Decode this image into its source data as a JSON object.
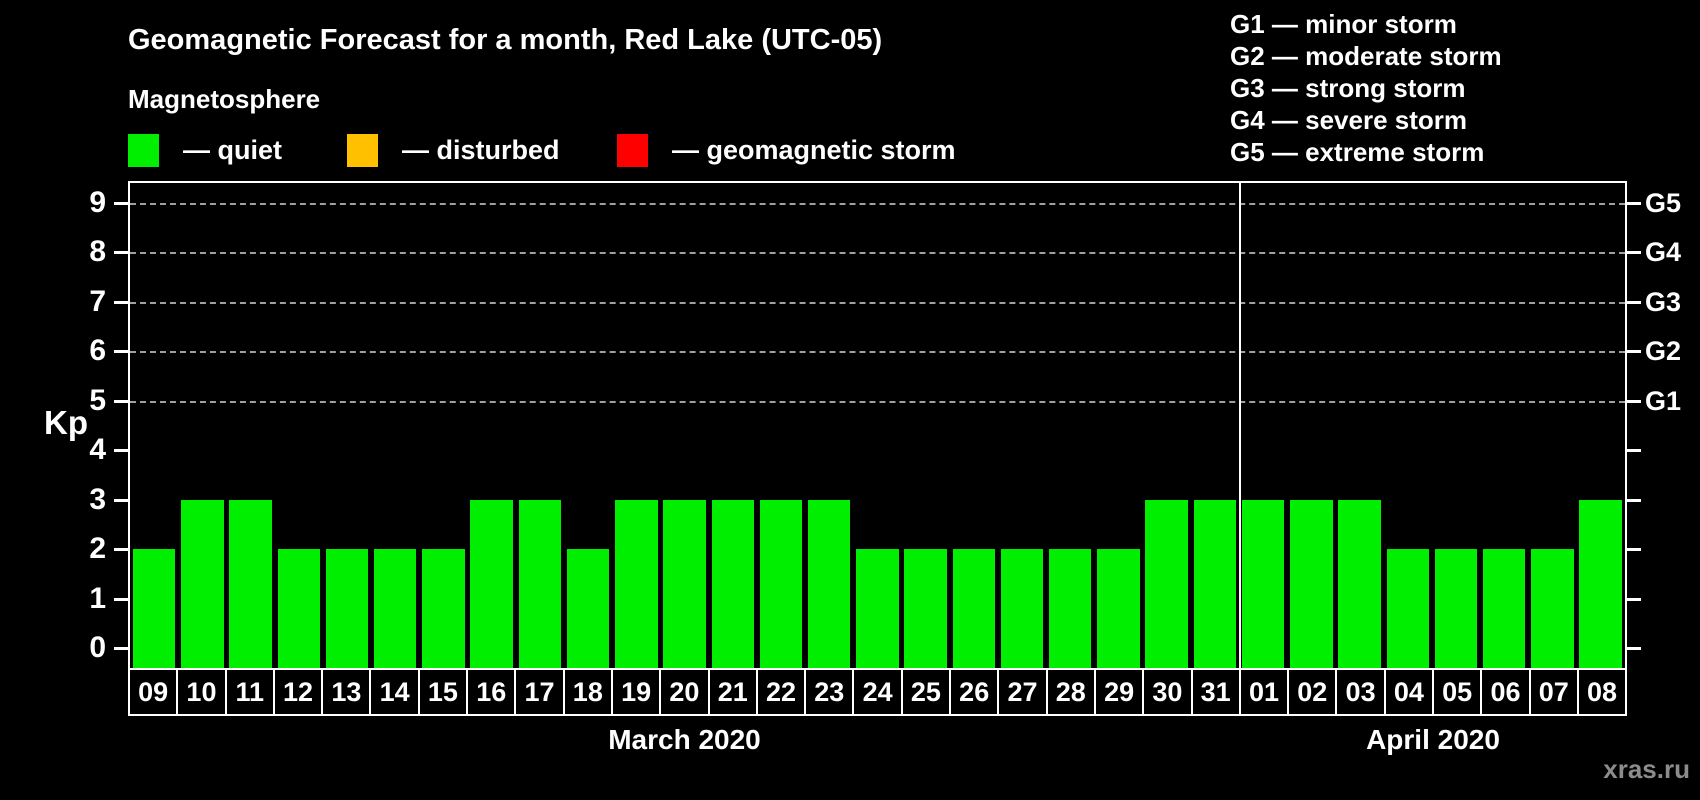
{
  "title": "Geomagnetic Forecast for a month, Red Lake (UTC-05)",
  "subtitle": "Magnetosphere",
  "legend": {
    "dash": "—",
    "items": [
      {
        "label": "quiet",
        "color": "#00ee00"
      },
      {
        "label": "disturbed",
        "color": "#ffc000"
      },
      {
        "label": "geomagnetic storm",
        "color": "#ff0000"
      }
    ]
  },
  "storm_legend": [
    {
      "code": "G1",
      "label": "minor storm"
    },
    {
      "code": "G2",
      "label": "moderate storm"
    },
    {
      "code": "G3",
      "label": "strong storm"
    },
    {
      "code": "G4",
      "label": "severe storm"
    },
    {
      "code": "G5",
      "label": "extreme storm"
    }
  ],
  "axes": {
    "y_label": "Kp",
    "y_ticks": [
      0,
      1,
      2,
      3,
      4,
      5,
      6,
      7,
      8,
      9
    ],
    "right_axis": [
      {
        "code": "G1",
        "kp": 5
      },
      {
        "code": "G2",
        "kp": 6
      },
      {
        "code": "G3",
        "kp": 7
      },
      {
        "code": "G4",
        "kp": 8
      },
      {
        "code": "G5",
        "kp": 9
      }
    ]
  },
  "months": [
    {
      "label": "March 2020",
      "count": 23
    },
    {
      "label": "April 2020",
      "count": 8
    }
  ],
  "watermark": "xras.ru",
  "chart_data": {
    "type": "bar",
    "title": "Geomagnetic Forecast for a month, Red Lake (UTC-05)",
    "ylabel": "Kp",
    "ylim": [
      0,
      9
    ],
    "gridlines_at": [
      5,
      6,
      7,
      8,
      9
    ],
    "legend_position": "top",
    "all_bars_status": "quiet",
    "categories": [
      "09",
      "10",
      "11",
      "12",
      "13",
      "14",
      "15",
      "16",
      "17",
      "18",
      "19",
      "20",
      "21",
      "22",
      "23",
      "24",
      "25",
      "26",
      "27",
      "28",
      "29",
      "30",
      "31",
      "01",
      "02",
      "03",
      "04",
      "05",
      "06",
      "07",
      "08"
    ],
    "values": [
      2,
      3,
      3,
      2,
      2,
      2,
      2,
      3,
      3,
      2,
      3,
      3,
      3,
      3,
      3,
      2,
      2,
      2,
      2,
      2,
      2,
      3,
      3,
      3,
      3,
      3,
      2,
      2,
      2,
      2,
      3
    ]
  }
}
